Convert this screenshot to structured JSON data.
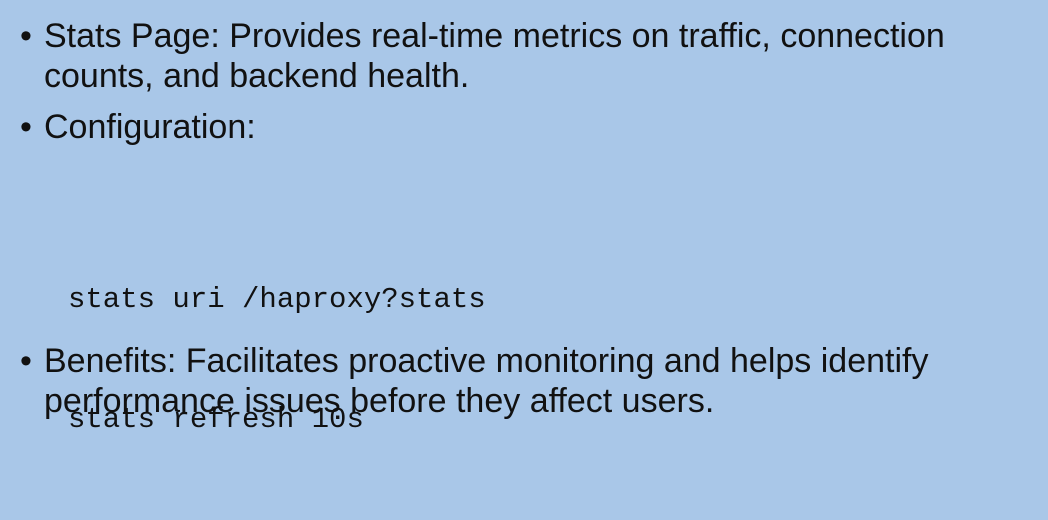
{
  "slide": {
    "bullets": [
      {
        "text": "Stats Page: Provides real-time metrics on traffic, connection counts, and backend health."
      },
      {
        "text": "Configuration:"
      },
      {
        "text": "Benefits: Facilitates proactive monitoring and helps identify performance issues before they affect users."
      }
    ],
    "code": [
      "stats uri /haproxy?stats",
      "stats refresh 10s"
    ],
    "bullet_symbol": "•"
  }
}
